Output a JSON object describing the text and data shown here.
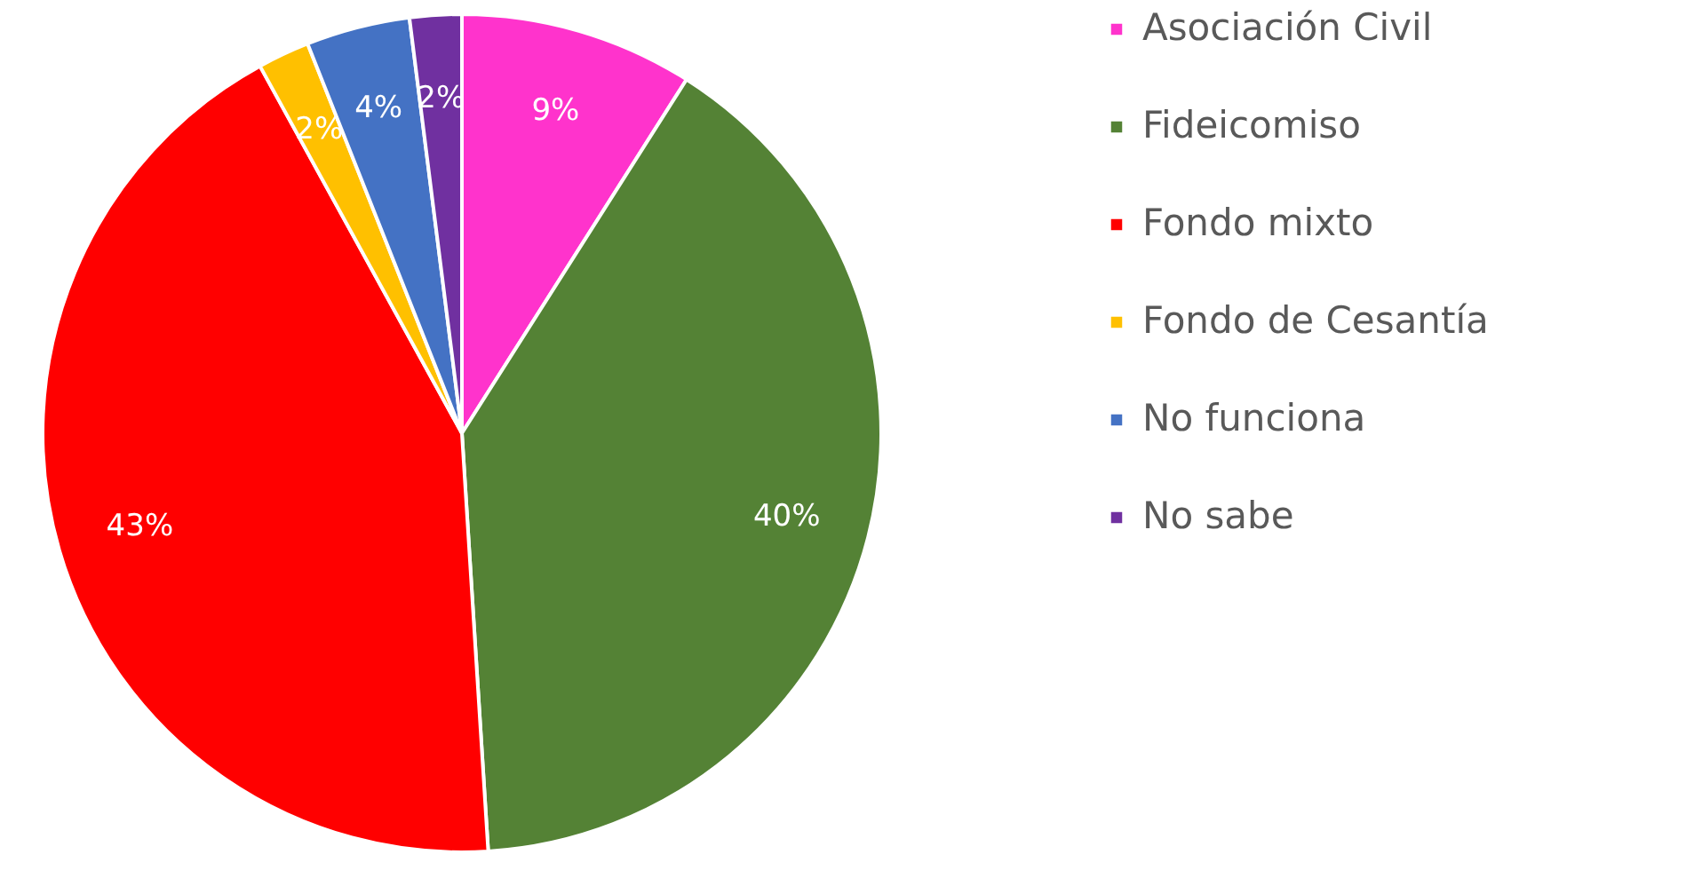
{
  "chart_data": {
    "type": "pie",
    "categories": [
      "Asociación Civil",
      "Fideicomiso",
      "Fondo mixto",
      "Fondo de Cesantía",
      "No funciona",
      "No sabe"
    ],
    "values": [
      9,
      40,
      43,
      2,
      4,
      2
    ],
    "colors": [
      "#ff33cc",
      "#548235",
      "#ff0000",
      "#ffc000",
      "#4472c4",
      "#7030a0"
    ],
    "value_labels": [
      "9%",
      "40%",
      "43%",
      "2%",
      "4%",
      "2%"
    ],
    "legend": "right"
  }
}
